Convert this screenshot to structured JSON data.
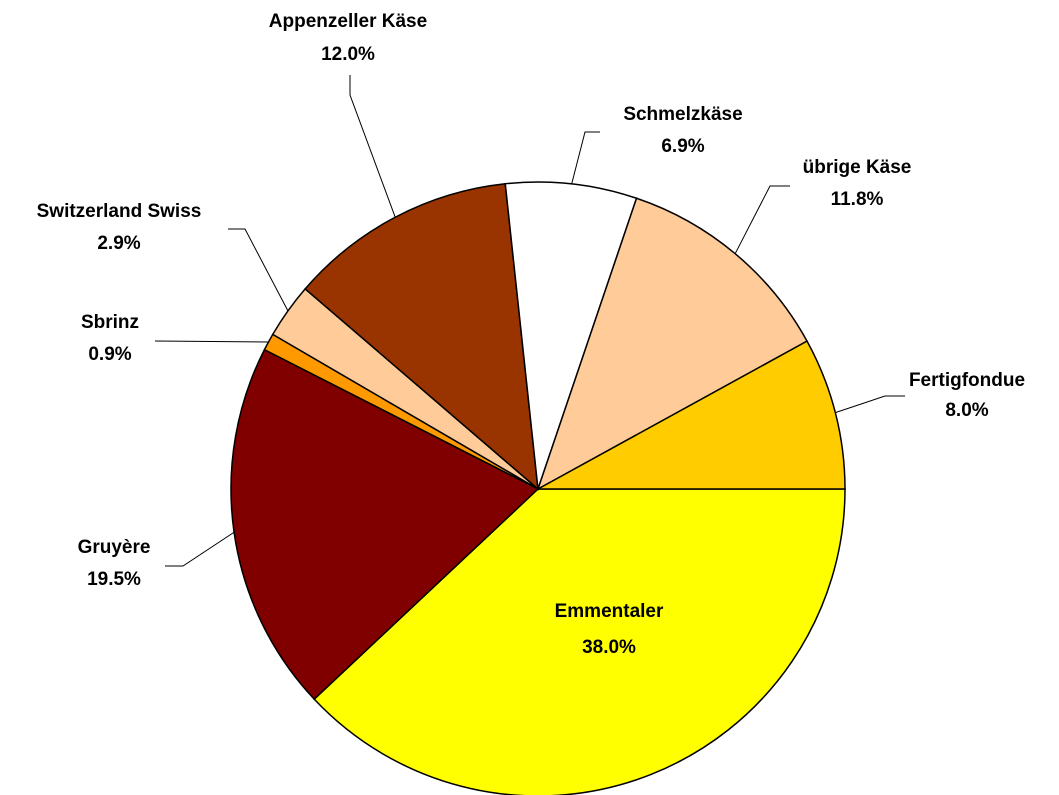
{
  "chart_data": {
    "type": "pie",
    "categories": [
      "Emmentaler",
      "Gruyère",
      "Sbrinz",
      "Switzerland Swiss",
      "Appenzeller Käse",
      "Schmelzkäse",
      "übrige Käse",
      "Fertigfondue"
    ],
    "values": [
      38.0,
      19.5,
      0.9,
      2.9,
      12.0,
      6.9,
      11.8,
      8.0
    ],
    "value_labels": [
      "38.0%",
      "19.5%",
      "0.9%",
      "2.9%",
      "12.0%",
      "6.9%",
      "11.8%",
      "8.0%"
    ],
    "colors": [
      "#ffff00",
      "#800000",
      "#ff9900",
      "#ffcc99",
      "#993300",
      "#ffffff",
      "#ffcc99",
      "#ffcc00"
    ]
  }
}
